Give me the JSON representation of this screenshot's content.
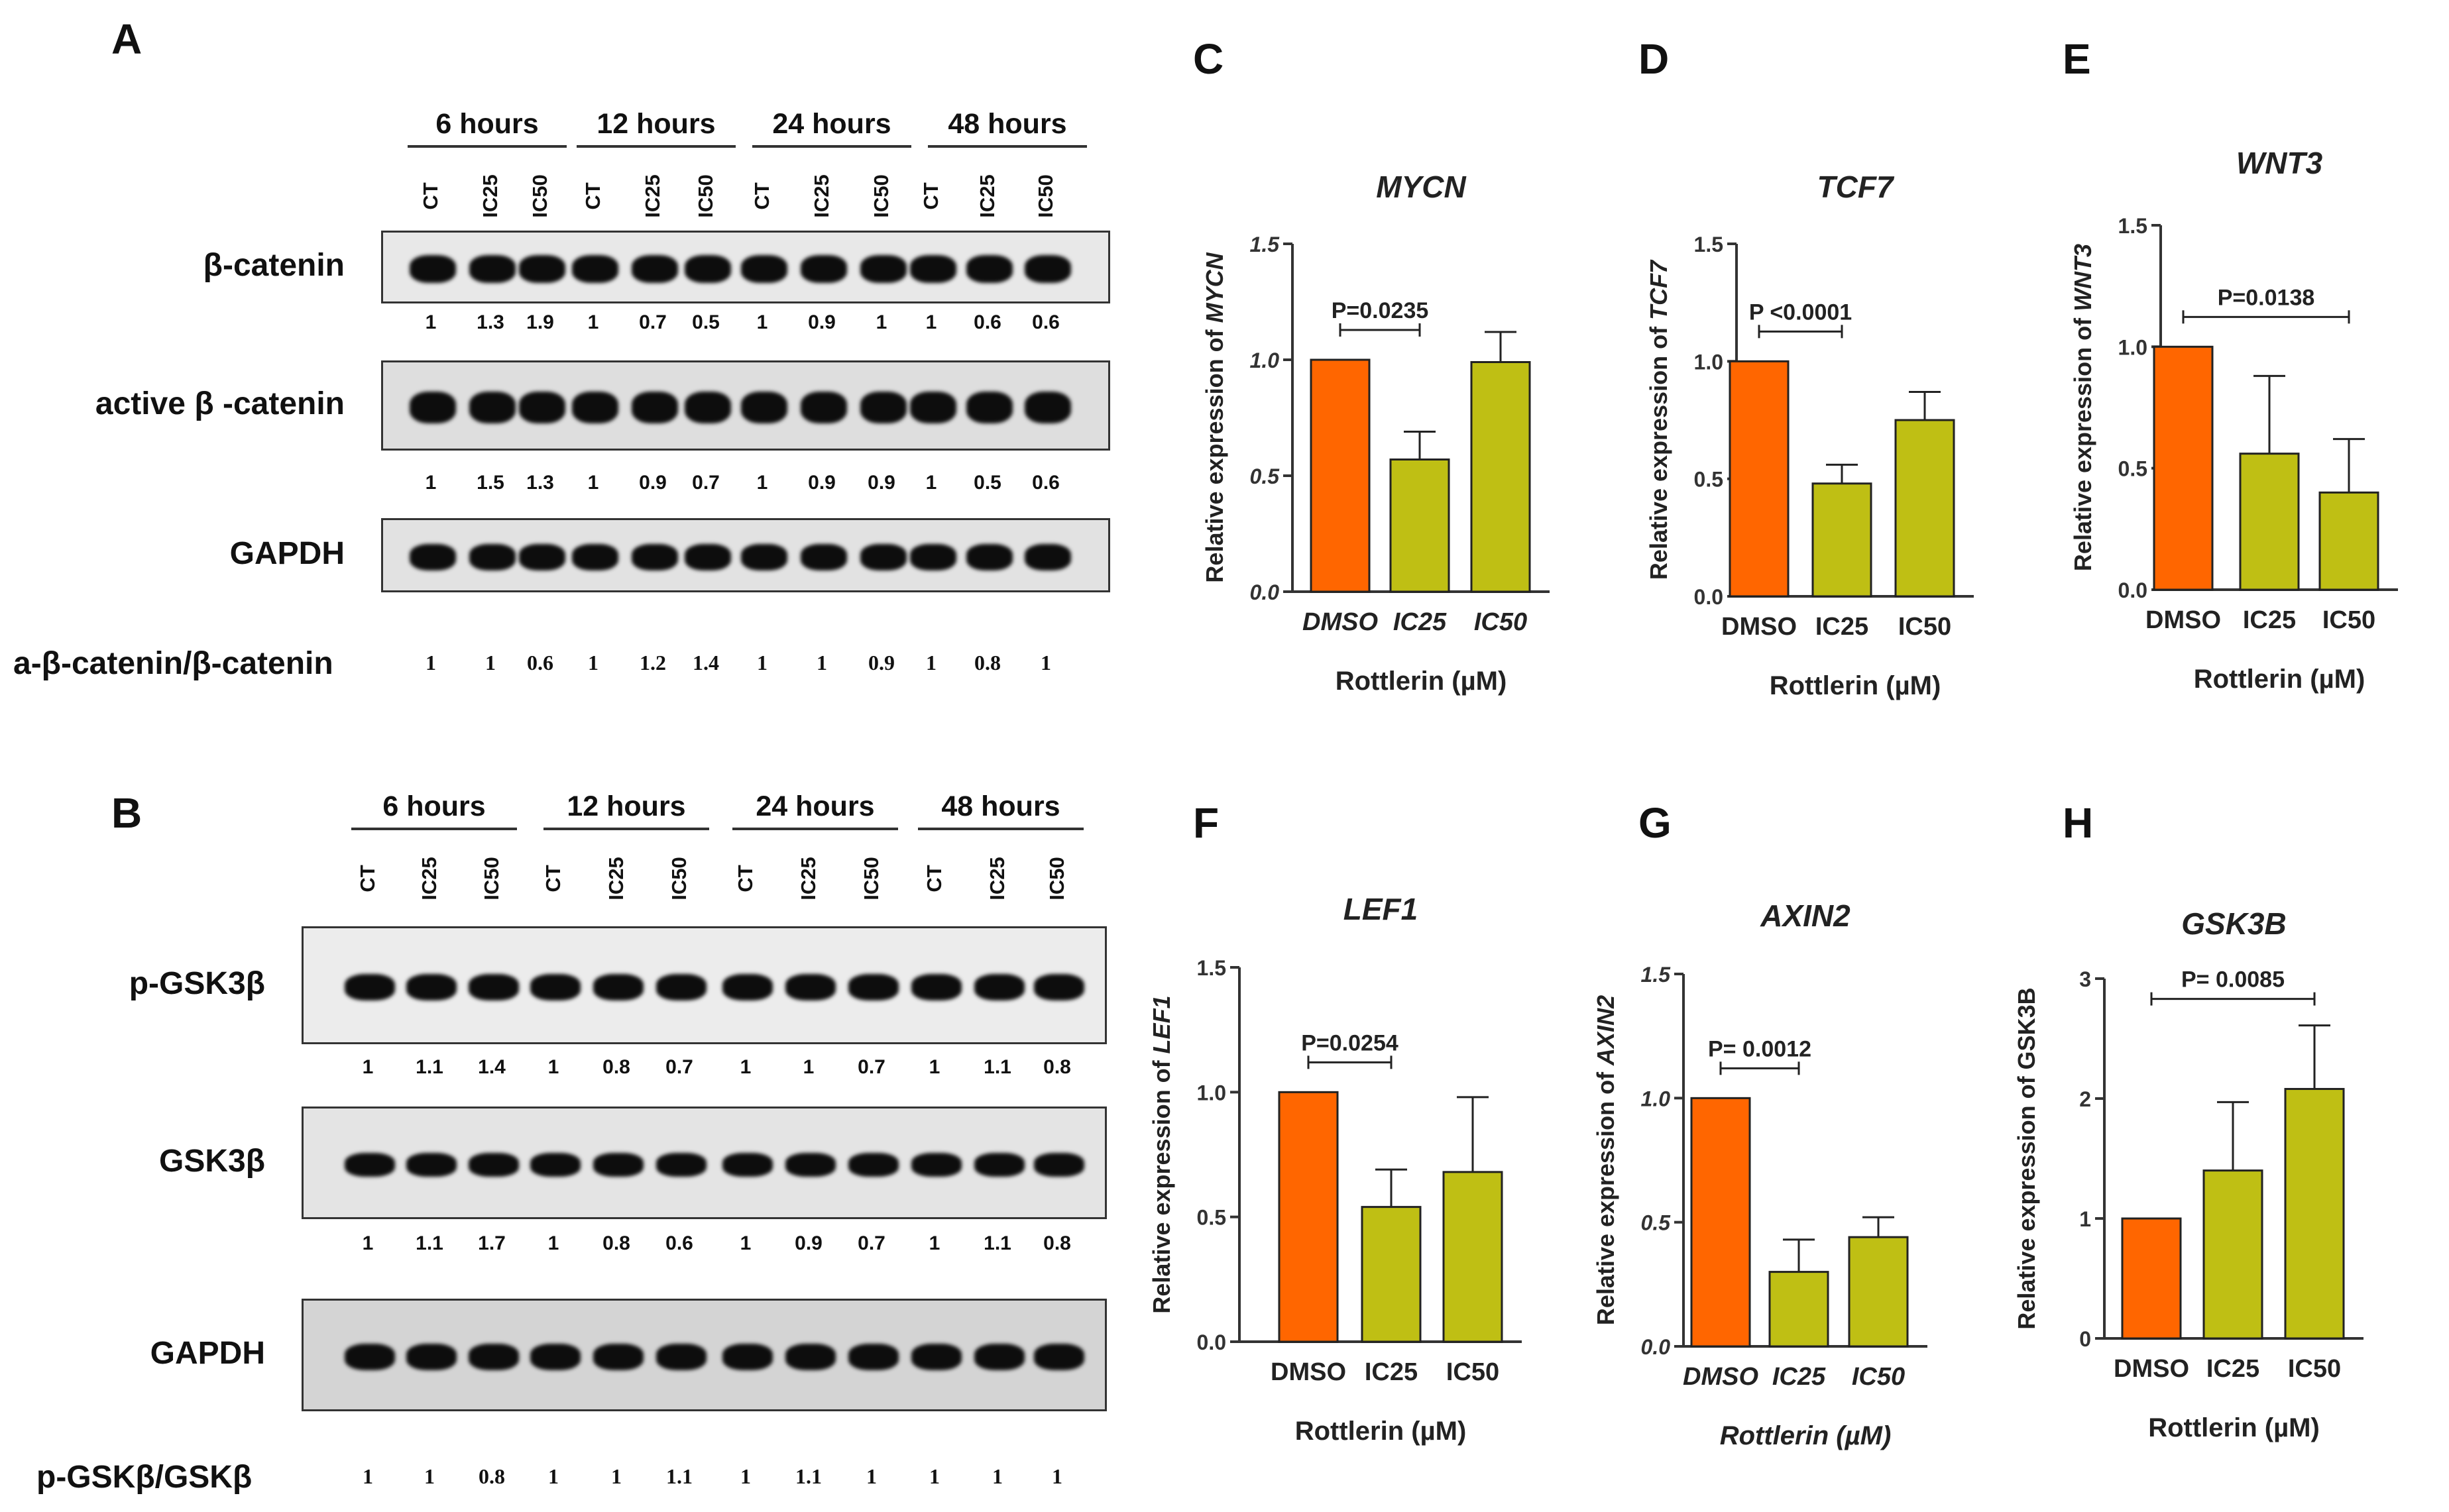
{
  "panels": {
    "A": "A",
    "B": "B",
    "C": "C",
    "D": "D",
    "E": "E",
    "F": "F",
    "G": "G",
    "H": "H"
  },
  "blot_A": {
    "time_groups": [
      "6 hours",
      "12 hours",
      "24 hours",
      "48 hours"
    ],
    "lanes": [
      "CT",
      "IC25",
      "IC50",
      "CT",
      "IC25",
      "IC50",
      "CT",
      "IC25",
      "IC50",
      "CT",
      "IC25",
      "IC50"
    ],
    "rows": [
      {
        "name": "β-catenin",
        "quant": [
          "1",
          "1.3",
          "1.9",
          "1",
          "0.7",
          "0.5",
          "1",
          "0.9",
          "1",
          "1",
          "0.6",
          "0.6"
        ]
      },
      {
        "name": "active β -catenin",
        "quant": [
          "1",
          "1.5",
          "1.3",
          "1",
          "0.9",
          "0.7",
          "1",
          "0.9",
          "0.9",
          "1",
          "0.5",
          "0.6"
        ]
      },
      {
        "name": "GAPDH",
        "quant": []
      }
    ],
    "ratio_label": "a-β-catenin/β-catenin",
    "ratio_values": [
      "1",
      "1",
      "0.6",
      "1",
      "1.2",
      "1.4",
      "1",
      "1",
      "0.9",
      "1",
      "0.8",
      "1"
    ]
  },
  "blot_B": {
    "time_groups": [
      "6 hours",
      "12 hours",
      "24 hours",
      "48 hours"
    ],
    "lanes": [
      "CT",
      "IC25",
      "IC50",
      "CT",
      "IC25",
      "IC50",
      "CT",
      "IC25",
      "IC50",
      "CT",
      "IC25",
      "IC50"
    ],
    "rows": [
      {
        "name": "p-GSK3β",
        "quant": [
          "1",
          "1.1",
          "1.4",
          "1",
          "0.8",
          "0.7",
          "1",
          "1",
          "0.7",
          "1",
          "1.1",
          "0.8"
        ]
      },
      {
        "name": "GSK3β",
        "quant": [
          "1",
          "1.1",
          "1.7",
          "1",
          "0.8",
          "0.6",
          "1",
          "0.9",
          "0.7",
          "1",
          "1.1",
          "0.8"
        ]
      },
      {
        "name": "GAPDH",
        "quant": []
      }
    ],
    "ratio_label": "p-GSKβ/GSKβ",
    "ratio_values": [
      "1",
      "1",
      "0.8",
      "1",
      "1",
      "1.1",
      "1",
      "1.1",
      "1",
      "1",
      "1",
      "1"
    ]
  },
  "colors": {
    "dmso": "#ff6600",
    "treated": "#bfbf14",
    "axis": "#333333"
  },
  "chart_data": [
    {
      "panel": "C",
      "type": "bar",
      "title": "MYCN",
      "title_italic": true,
      "ylabel": "Relative expression of MYCN",
      "ylabel_gene": "MYCN",
      "xlabel": "Rottlerin (µM)",
      "xlabel_italic": false,
      "categories": [
        "DMSO",
        "IC25",
        "IC50"
      ],
      "categories_italic": true,
      "values": [
        1.0,
        0.57,
        0.99
      ],
      "errors": [
        0,
        0.12,
        0.13
      ],
      "ylim": [
        0,
        1.5
      ],
      "yticks": [
        "0.0",
        "0.5",
        "1.0",
        "1.5"
      ],
      "yticks_italic": true,
      "pvalue": "P=0.0235",
      "pbracket": [
        0,
        1
      ]
    },
    {
      "panel": "D",
      "type": "bar",
      "title": "TCF7",
      "title_italic": true,
      "ylabel": "Relative expression of TCF7",
      "ylabel_gene": "TCF7",
      "xlabel": "Rottlerin (µM)",
      "xlabel_italic": false,
      "categories": [
        "DMSO",
        "IC25",
        "IC50"
      ],
      "categories_italic": false,
      "values": [
        1.0,
        0.48,
        0.75
      ],
      "errors": [
        0,
        0.08,
        0.12
      ],
      "ylim": [
        0,
        1.5
      ],
      "yticks": [
        "0.0",
        "0.5",
        "1.0",
        "1.5"
      ],
      "yticks_italic": false,
      "pvalue": "P <0.0001",
      "pbracket": [
        0,
        1
      ]
    },
    {
      "panel": "E",
      "type": "bar",
      "title": "WNT3",
      "title_italic": true,
      "ylabel": "Relative expression of WNT3",
      "ylabel_gene": "WNT3",
      "xlabel": "Rottlerin (µM)",
      "xlabel_italic": false,
      "categories": [
        "DMSO",
        "IC25",
        "IC50"
      ],
      "categories_italic": false,
      "values": [
        1.0,
        0.56,
        0.4
      ],
      "errors": [
        0,
        0.32,
        0.22
      ],
      "ylim": [
        0,
        1.5
      ],
      "yticks": [
        "0.0",
        "0.5",
        "1.0",
        "1.5"
      ],
      "yticks_italic": false,
      "pvalue": "P=0.0138",
      "pbracket": [
        0,
        2
      ]
    },
    {
      "panel": "F",
      "type": "bar",
      "title": "LEF1",
      "title_italic": true,
      "ylabel": "Relative expression of LEF1",
      "ylabel_gene": "LEF1",
      "xlabel": "Rottlerin (µM)",
      "xlabel_italic": false,
      "categories": [
        "DMSO",
        "IC25",
        "IC50"
      ],
      "categories_italic": false,
      "values": [
        1.0,
        0.54,
        0.68
      ],
      "errors": [
        0,
        0.15,
        0.3
      ],
      "ylim": [
        0,
        1.5
      ],
      "yticks": [
        "0.0",
        "0.5",
        "1.0",
        "1.5"
      ],
      "yticks_italic": false,
      "pvalue": "P=0.0254",
      "pbracket": [
        0,
        1
      ]
    },
    {
      "panel": "G",
      "type": "bar",
      "title": "AXIN2",
      "title_italic": true,
      "ylabel": "Relative expression of AXIN2",
      "ylabel_gene": "AXIN2",
      "xlabel": "Rottlerin (µM)",
      "xlabel_italic": true,
      "categories": [
        "DMSO",
        "IC25",
        "IC50"
      ],
      "categories_italic": true,
      "values": [
        1.0,
        0.3,
        0.44
      ],
      "errors": [
        0,
        0.13,
        0.08
      ],
      "ylim": [
        0,
        1.5
      ],
      "yticks": [
        "0.0",
        "0.5",
        "1.0",
        "1.5"
      ],
      "yticks_italic": true,
      "pvalue": "P= 0.0012",
      "pbracket": [
        0,
        1
      ]
    },
    {
      "panel": "H",
      "type": "bar",
      "title": "GSK3B",
      "title_italic": true,
      "ylabel": "Relative expression of GSK3B",
      "ylabel_gene": "",
      "xlabel": "Rottlerin (µM)",
      "xlabel_italic": false,
      "categories": [
        "DMSO",
        "IC25",
        "IC50"
      ],
      "categories_italic": false,
      "values": [
        1.0,
        1.4,
        2.08
      ],
      "errors": [
        0,
        0.57,
        0.53
      ],
      "ylim": [
        0,
        3
      ],
      "yticks": [
        "0",
        "1",
        "2",
        "3"
      ],
      "yticks_italic": false,
      "pvalue": "P= 0.0085",
      "pbracket": [
        0,
        2
      ]
    }
  ]
}
